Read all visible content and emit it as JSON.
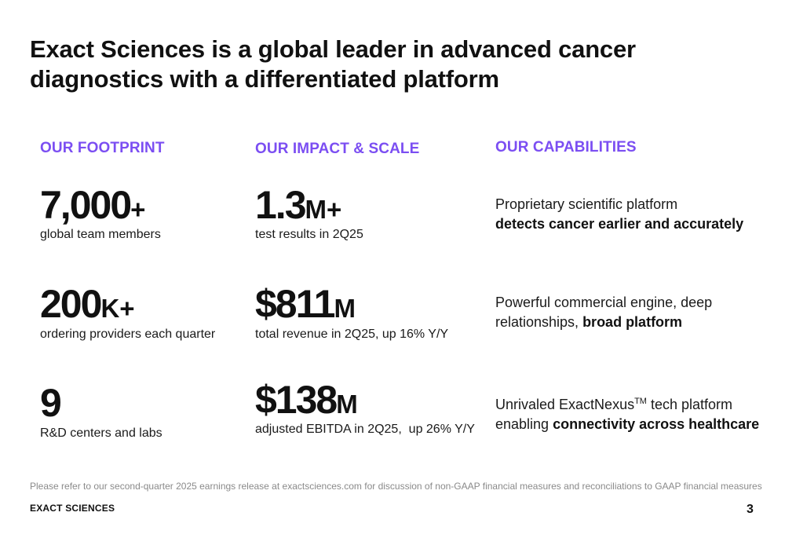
{
  "title": "Exact Sciences is a global leader in advanced cancer diagnostics with a differentiated platform",
  "accent_color": "#7b4ef2",
  "footprint": {
    "heading": "OUR FOOTPRINT",
    "stats": [
      {
        "value": "7,000",
        "suffix": "+",
        "desc": "global team members"
      },
      {
        "value": "200",
        "suffix": "K+",
        "desc": "ordering providers each quarter"
      },
      {
        "value": "9",
        "suffix": "",
        "desc": "R&D centers and labs"
      }
    ]
  },
  "impact": {
    "heading": "OUR IMPACT & SCALE",
    "stats": [
      {
        "value": "1.3",
        "suffix": "M+",
        "desc": "test results in 2Q25"
      },
      {
        "value": "$811",
        "suffix": "M",
        "desc": "total revenue in 2Q25, up 16% Y/Y"
      },
      {
        "value": "$138",
        "suffix": "M",
        "desc": "adjusted EBITDA in 2Q25,  up 26% Y/Y"
      }
    ]
  },
  "capabilities": {
    "heading": "OUR CAPABILITIES",
    "items": [
      {
        "line1": "Proprietary scientific platform",
        "bold": "detects cancer earlier and accurately"
      },
      {
        "line1": "Powerful commercial engine, deep",
        "line2_plain": "relationships, ",
        "bold": "broad platform"
      },
      {
        "line1_a": "Unrivaled ExactNexus",
        "line1_sup": "TM",
        "line1_b": " tech platform",
        "line2_plain": "enabling ",
        "bold": "connectivity across healthcare"
      }
    ]
  },
  "footnote": "Please refer to our second-quarter 2025 earnings release at exactsciences.com for discussion of non-GAAP financial measures and reconciliations to GAAP financial measures",
  "brand": "EXACT SCIENCES",
  "page_number": "3"
}
